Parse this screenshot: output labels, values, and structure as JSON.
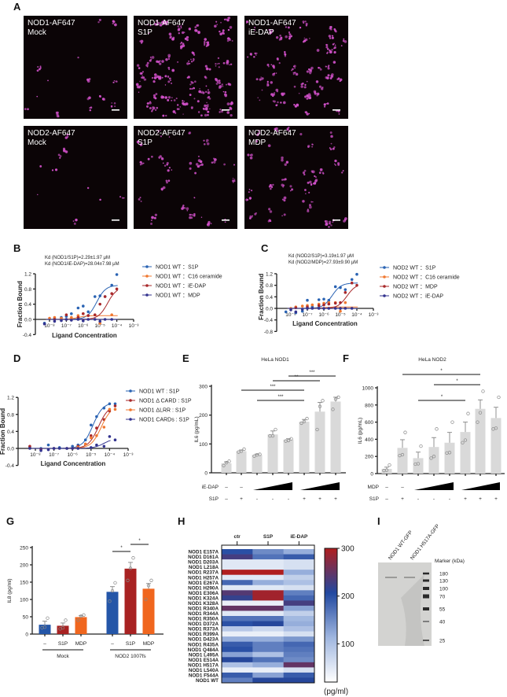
{
  "panel_labels": [
    "A",
    "B",
    "C",
    "D",
    "E",
    "F",
    "G",
    "H",
    "I"
  ],
  "panel_a": {
    "images": [
      {
        "line1": "NOD1-AF647",
        "line2": "Mock"
      },
      {
        "line1": "NOD1-AF647",
        "line2": "S1P"
      },
      {
        "line1": "NOD1-AF647",
        "line2": "iE-DAP"
      },
      {
        "line1": "NOD2-AF647",
        "line2": "Mock"
      },
      {
        "line1": "NOD2-AF647",
        "line2": "S1P"
      },
      {
        "line1": "NOD2-AF647",
        "line2": "MDP"
      }
    ],
    "colors": {
      "background": "#0b0406",
      "puncta": "#d050c8"
    }
  },
  "colors": {
    "s1p": "#2a63b3",
    "c16": "#f07830",
    "red": "#a8282a",
    "navy": "#33338f",
    "bar_gray": "#d9d9d9",
    "g_blue": "#2456a8",
    "g_red": "#a82222",
    "g_orange": "#f0661e"
  },
  "chart_data": [
    {
      "panel": "B",
      "type": "scatter",
      "annotations": [
        "Kd (NOD1/S1P)=2.29±1.97 μM",
        "Kd (NOD1/iE-DAP)=28.04±7.98 μM"
      ],
      "xlabel": "Ligand Concentration",
      "ylabel": "Fraction Bound",
      "xscale": "log",
      "xticks": [
        "10⁻⁸",
        "10⁻⁷",
        "10⁻⁶",
        "10⁻⁵",
        "10⁻⁴",
        "10⁻³"
      ],
      "yticks": [
        "1.2",
        "0.8",
        "0.4",
        "0.0",
        "-0.4"
      ],
      "ylim": [
        -0.4,
        1.2
      ],
      "xlim": [
        -8,
        -3
      ],
      "legend": "right",
      "series": [
        {
          "name": "NOD1 WT ：S1P",
          "color": "#2a63b3",
          "fit": {
            "kd_log": -5.2,
            "top": 0.9
          },
          "x": [
            -8.3,
            -7.7,
            -7.3,
            -7,
            -6.7,
            -6.3,
            -6,
            -5.7,
            -5.3,
            -5,
            -4.7,
            -4.3,
            -4
          ],
          "y": [
            -0.1,
            0.02,
            0.05,
            0.08,
            0.15,
            0.3,
            0.35,
            0.2,
            0.6,
            0.62,
            0.6,
            0.9,
            1.18
          ]
        },
        {
          "name": "NOD1 WT ：C16 ceramide",
          "color": "#f07830",
          "fit": {
            "kd_log": -6.3,
            "top": 0.1
          },
          "x": [
            -8,
            -7.7,
            -7.3,
            -7,
            -6.7,
            -6.3,
            -6,
            -5.7,
            -5,
            -4.3
          ],
          "y": [
            0.03,
            0.05,
            0.03,
            0.0,
            0.05,
            0.1,
            0.15,
            0.1,
            -0.1,
            0.12
          ]
        },
        {
          "name": "NOD1 WT ：iE-DAP",
          "color": "#a8282a",
          "fit": {
            "kd_log": -4.55,
            "top": 0.85
          },
          "x": [
            -7.7,
            -7,
            -6.3,
            -6,
            -5.7,
            -5.3,
            -5,
            -4.7,
            -4.3,
            -4
          ],
          "y": [
            0.0,
            0.12,
            0.05,
            0.15,
            0.1,
            0.12,
            0.4,
            0.6,
            0.68,
            0.8
          ]
        },
        {
          "name": "NOD1 WT ：MDP",
          "color": "#33338f",
          "fit": {
            "kd_log": -5,
            "top": 0.0
          },
          "x": [
            -8.3,
            -7.7,
            -7.3,
            -7,
            -6.7,
            -6.3,
            -6,
            -5.7,
            -5.3,
            -5,
            -4.7,
            -4.3
          ],
          "y": [
            -0.12,
            -0.05,
            -0.03,
            0.0,
            -0.02,
            0.0,
            -0.04,
            0.0,
            0.0,
            -0.05,
            0.0,
            0.0
          ]
        }
      ]
    },
    {
      "panel": "C",
      "type": "scatter",
      "annotations": [
        "Kd (NOD2/S1P)=3.19±1.97 μM",
        "Kd (NOD2/MDP)=27.93±9.90 μM"
      ],
      "xlabel": "Ligand Concentration",
      "ylabel": "Fraction Bound",
      "xscale": "log",
      "xticks": [
        "10⁻⁸",
        "10⁻⁷",
        "10⁻⁶",
        "10⁻⁵",
        "10⁻⁴",
        "10⁻³"
      ],
      "yticks": [
        "1.2",
        "0.8",
        "0.4",
        "0.0",
        "-0.4",
        "-0.8"
      ],
      "ylim": [
        -0.8,
        1.2
      ],
      "xlim": [
        -8,
        -3
      ],
      "legend": "right",
      "series": [
        {
          "name": "NOD2 WT ：S1P",
          "color": "#2a63b3",
          "fit": {
            "kd_log": -5.5,
            "top": 0.88
          },
          "x": [
            -8.3,
            -7.7,
            -7.3,
            -7,
            -6.7,
            -6.3,
            -6,
            -5.7,
            -5.3,
            -5,
            -4.7,
            -4.3,
            -4
          ],
          "y": [
            -0.12,
            -0.15,
            -0.1,
            0.28,
            0.05,
            0.3,
            0.32,
            0.28,
            0.75,
            0.72,
            0.65,
            1.0,
            1.18
          ]
        },
        {
          "name": "NOD2 WT ：C16 ceramide",
          "color": "#f07830",
          "fit": {
            "kd_log": -6,
            "top": 0.05
          },
          "x": [
            -8,
            -7.7,
            -7.3,
            -7,
            -6.7,
            -6.3,
            -6,
            -5.7,
            -5.3,
            -5,
            -4.7
          ],
          "y": [
            0.0,
            0.05,
            0.08,
            0.1,
            0.12,
            0.15,
            0.18,
            0.2,
            0.2,
            -0.1,
            0.2
          ]
        },
        {
          "name": "NOD2 WT ：MDP",
          "color": "#a8282a",
          "fit": {
            "kd_log": -4.6,
            "top": 0.85
          },
          "x": [
            -7.7,
            -7,
            -6.3,
            -6,
            -5.7,
            -5.3,
            -5,
            -4.7,
            -4.3,
            -4
          ],
          "y": [
            0.02,
            0.05,
            0.1,
            0.12,
            0.15,
            0.18,
            0.2,
            0.55,
            0.88,
            0.8
          ]
        },
        {
          "name": "NOD2 WT ：iE-DAP",
          "color": "#33338f",
          "fit": {
            "kd_log": -5,
            "top": 0.0
          },
          "x": [
            -8,
            -7.7,
            -7.3,
            -7,
            -6.7,
            -6.3,
            -6,
            -5.7,
            -5.3,
            -5,
            -4.7,
            -4.3
          ],
          "y": [
            -0.05,
            -0.12,
            -0.03,
            0.0,
            0.0,
            0.0,
            0.0,
            0.0,
            0.0,
            0.0,
            0.0,
            0.0
          ]
        }
      ]
    },
    {
      "panel": "D",
      "type": "scatter",
      "xlabel": "Ligand Concentration",
      "ylabel": "Fraction Bound",
      "xscale": "log",
      "xticks": [
        "10⁻⁸",
        "10⁻⁷",
        "10⁻⁶",
        "10⁻⁵",
        "10⁻⁴",
        "10⁻³"
      ],
      "yticks": [
        "1.2",
        "0.8",
        "0.4",
        "0.0",
        "-0.4"
      ],
      "ylim": [
        -0.4,
        1.2
      ],
      "xlim": [
        -8,
        -3
      ],
      "legend": "right",
      "series": [
        {
          "name": "NOD1 WT : S1P",
          "color": "#2a63b3",
          "fit": {
            "kd_log": -4.9,
            "top": 1.08
          },
          "x": [
            -8.3,
            -7.7,
            -7.3,
            -7,
            -6.7,
            -6.3,
            -6,
            -5.7,
            -5.3,
            -5,
            -4.7,
            -4.3,
            -4,
            -3.7
          ],
          "y": [
            0.03,
            0.0,
            0.08,
            0.0,
            0.02,
            0.0,
            0.05,
            0.08,
            0.2,
            0.55,
            0.75,
            0.95,
            1.05,
            1.05
          ]
        },
        {
          "name": "NOD1  Δ CARD : S1P",
          "color": "#a8282a",
          "fit": {
            "kd_log": -4.6,
            "top": 1.02
          },
          "x": [
            -8.3,
            -7.7,
            -7,
            -6.3,
            -5.7,
            -5.3,
            -5,
            -4.7,
            -4.3,
            -4,
            -3.7
          ],
          "y": [
            0.05,
            -0.02,
            0.0,
            0.0,
            0.05,
            0.1,
            0.3,
            0.48,
            0.68,
            0.88,
            1.0
          ]
        },
        {
          "name": "NOD1  ΔLRR : S1P",
          "color": "#f07830",
          "fit": {
            "kd_log": -4.45,
            "top": 1.0
          },
          "x": [
            -6,
            -5.7,
            -5.3,
            -5,
            -4.7,
            -4.3,
            -4,
            -3.7
          ],
          "y": [
            0.0,
            0.03,
            0.1,
            0.25,
            0.3,
            0.5,
            0.92,
            0.92
          ]
        },
        {
          "name": "NOD1 CARDs : S1P",
          "color": "#33338f",
          "fit": {
            "kd_log": -4.3,
            "top": 0.24
          },
          "x": [
            -8.3,
            -7.7,
            -7.3,
            -7,
            -6.7,
            -6.3,
            -6,
            -5.7,
            -5,
            -4.7,
            -4.3,
            -4,
            -3.7
          ],
          "y": [
            0.0,
            -0.05,
            -0.03,
            0.0,
            0.0,
            0.0,
            0.0,
            0.0,
            0.02,
            0.08,
            0.05,
            0.28,
            0.2
          ]
        }
      ]
    },
    {
      "panel": "E",
      "type": "bar",
      "title": "HeLa NOD1",
      "ylabel": "IL6 (pg/mL)",
      "yticks": [
        "0",
        "100",
        "200",
        "300"
      ],
      "ylim": [
        0,
        300
      ],
      "values": [
        33,
        75,
        62,
        133,
        115,
        177,
        212,
        247
      ],
      "errors": [
        5,
        4,
        3,
        12,
        3,
        8,
        32,
        15
      ],
      "points": [
        [
          25,
          35,
          40
        ],
        [
          72,
          75,
          82
        ],
        [
          58,
          62,
          64
        ],
        [
          128,
          128,
          150
        ],
        [
          110,
          112,
          118
        ],
        [
          172,
          178,
          188
        ],
        [
          150,
          230,
          250
        ],
        [
          220,
          255,
          262
        ]
      ],
      "treatments": [
        {
          "label": "iE-DAP",
          "row": [
            "–",
            "–",
            "ramp",
            "ramp",
            "ramp",
            "ramp",
            "ramp",
            "ramp"
          ]
        },
        {
          "label": "S1P",
          "row": [
            "–",
            "+",
            "-",
            "-",
            "-",
            "+",
            "+",
            "+"
          ]
        }
      ],
      "row_marks": {
        "iE-DAP": [
          "–",
          "–"
        ],
        "S1P": [
          "–",
          "+",
          "-",
          "-",
          "-",
          "+",
          "+",
          "+"
        ]
      },
      "significance": [
        {
          "from": 4,
          "to": 7,
          "label": "***"
        },
        {
          "from": 3,
          "to": 6,
          "label": "**"
        },
        {
          "from": 1,
          "to": 5,
          "label": "***"
        },
        {
          "from": 2,
          "to": 5,
          "label": "***"
        }
      ]
    },
    {
      "panel": "F",
      "type": "bar",
      "title": "HeLa NOD2",
      "ylabel": "IL6 (pg/mL)",
      "yticks": [
        "0",
        "200",
        "400",
        "600",
        "800",
        "1000"
      ],
      "ylim": [
        0,
        1000
      ],
      "values": [
        55,
        300,
        180,
        310,
        360,
        485,
        755,
        648
      ],
      "errors": [
        20,
        95,
        70,
        110,
        120,
        115,
        105,
        125
      ],
      "points": [
        [
          35,
          40,
          100
        ],
        [
          210,
          220,
          480
        ],
        [
          110,
          115,
          320
        ],
        [
          180,
          200,
          520
        ],
        [
          240,
          245,
          600
        ],
        [
          360,
          390,
          700
        ],
        [
          600,
          710,
          960
        ],
        [
          520,
          530,
          890
        ]
      ],
      "row_marks": {
        "MDP": [
          "–",
          "–"
        ],
        "S1P": [
          "–",
          "+",
          "-",
          "-",
          "-",
          "+",
          "+",
          "+"
        ]
      },
      "significance": [
        {
          "from": 1,
          "to": 6,
          "label": "*"
        },
        {
          "from": 3,
          "to": 6,
          "label": "*"
        },
        {
          "from": 2,
          "to": 5,
          "label": "*"
        }
      ]
    },
    {
      "panel": "G",
      "type": "bar",
      "ylabel": "IL8 (pg/ml)",
      "yticks": [
        "0",
        "50",
        "100",
        "150",
        "200",
        "250"
      ],
      "ylim": [
        0,
        250
      ],
      "categories": [
        "–",
        "S1P",
        "MDP",
        "–",
        "S1P",
        "MDP"
      ],
      "groups": [
        {
          "label": "Mock",
          "bars": [
            0,
            1,
            2
          ]
        },
        {
          "label": "NOD2 1007fs",
          "bars": [
            3,
            4,
            5
          ]
        }
      ],
      "values": [
        27,
        24,
        49,
        122,
        189,
        131
      ],
      "errors": [
        10,
        8,
        4,
        15,
        18,
        15
      ],
      "points": [
        [
          18,
          20,
          46
        ],
        [
          15,
          18,
          40
        ],
        [
          40,
          52,
          55
        ],
        [
          95,
          125,
          148
        ],
        [
          155,
          190,
          220
        ],
        [
          100,
          140,
          155
        ]
      ],
      "bar_colors": [
        "#2456a8",
        "#a82222",
        "#f0661e",
        "#2456a8",
        "#a82222",
        "#f0661e"
      ],
      "significance": [
        {
          "from": 3,
          "to": 4,
          "label": "*"
        },
        {
          "from": 4,
          "to": 5,
          "label": "*"
        }
      ]
    },
    {
      "panel": "H",
      "type": "heatmap",
      "columns": [
        "ctr",
        "S1P",
        "iE-DAP"
      ],
      "rows": [
        "NOD1 E157A",
        "NOD1 D161A",
        "NOD1 D203A",
        "NOD1 L218A",
        "NOD1 R237A",
        "NOD1 H257A",
        "NOD1 E267A",
        "NOD1 H290A",
        "NOD1 E306A",
        "NOD1 K324A",
        "NOD1 K328A",
        "NOD1 R340A",
        "NOD1 R344A",
        "NOD1 R350A",
        "NOD1 D372A",
        "NOD1 R373A",
        "NOD1 R399A",
        "NOD1 D423A",
        "NOD1 R435A",
        "NOD1 Q484A",
        "NOD1 L495A",
        "NOD1 E514A",
        "NOD1 H517A",
        "NOD1 L540A",
        "NOD1 F544A",
        "NOD1 WT"
      ],
      "highlighted_rows": [
        "NOD1 K328A",
        "NOD1 H517A"
      ],
      "highlight_color": "#e02020",
      "values": [
        [
          200,
          150,
          120
        ],
        [
          230,
          170,
          190
        ],
        [
          50,
          50,
          60
        ],
        [
          50,
          50,
          60
        ],
        [
          300,
          300,
          120
        ],
        [
          50,
          50,
          80
        ],
        [
          180,
          120,
          100
        ],
        [
          50,
          50,
          60
        ],
        [
          240,
          290,
          160
        ],
        [
          220,
          290,
          180
        ],
        [
          40,
          40,
          230
        ],
        [
          250,
          250,
          130
        ],
        [
          50,
          50,
          80
        ],
        [
          170,
          170,
          110
        ],
        [
          200,
          210,
          120
        ],
        [
          90,
          70,
          100
        ],
        [
          40,
          40,
          60
        ],
        [
          120,
          120,
          140
        ],
        [
          190,
          160,
          180
        ],
        [
          200,
          160,
          170
        ],
        [
          130,
          100,
          160
        ],
        [
          210,
          170,
          150
        ],
        [
          100,
          120,
          250
        ],
        [
          40,
          40,
          60
        ],
        [
          190,
          130,
          190
        ],
        [
          160,
          210,
          210
        ]
      ],
      "colorbar": {
        "ticks": [
          "100",
          "200",
          "300"
        ],
        "unit": "(pg/ml)",
        "range": [
          20,
          300
        ],
        "colors": [
          "#ffffff",
          "#9fb6df",
          "#2148a0",
          "#b01e1e"
        ]
      }
    }
  ],
  "panel_i": {
    "lanes": [
      "NOD1 WT-GFP",
      "NOD1 H517A-GFP"
    ],
    "marker_title": "Marker (kDa)",
    "markers": [
      "180",
      "130",
      "100",
      "70",
      "55",
      "40",
      "25"
    ]
  }
}
